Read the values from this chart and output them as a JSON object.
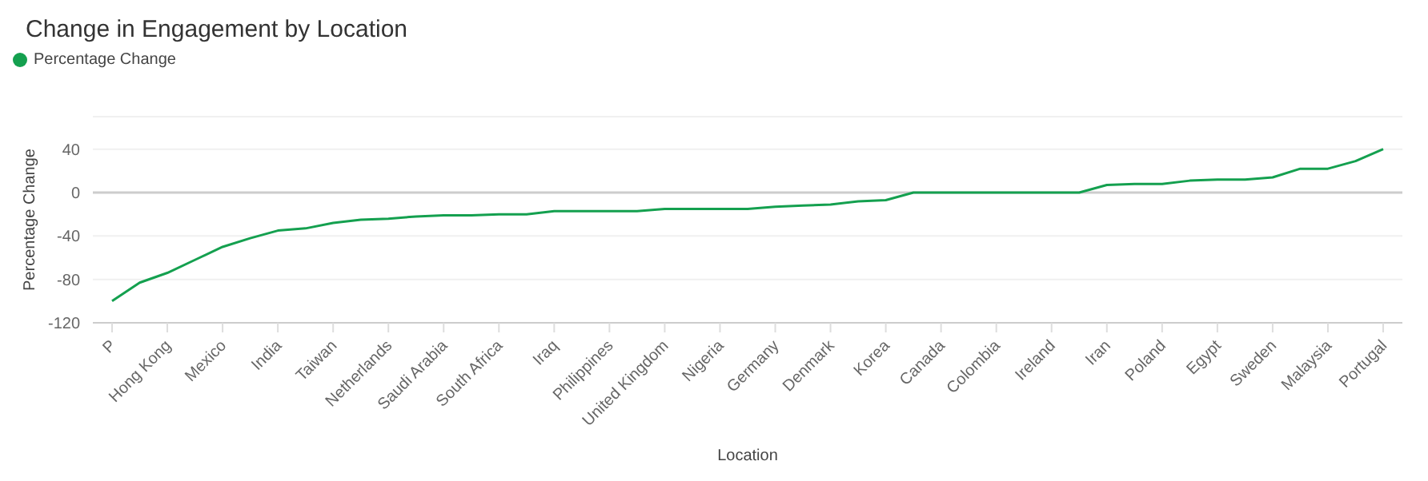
{
  "chart_data": {
    "type": "line",
    "title": "Change in Engagement by Location",
    "xlabel": "Location",
    "ylabel": "Percentage Change",
    "categories": [
      "P",
      null,
      "Hong Kong",
      null,
      "Mexico",
      null,
      "India",
      null,
      "Taiwan",
      null,
      "Netherlands",
      null,
      "Saudi Arabia",
      null,
      "South Africa",
      null,
      "Iraq",
      null,
      "Philippines",
      null,
      "United Kingdom",
      null,
      "Nigeria",
      null,
      "Germany",
      null,
      "Denmark",
      null,
      "Korea",
      null,
      "Canada",
      null,
      "Colombia",
      null,
      "Ireland",
      null,
      "Iran",
      null,
      "Poland",
      null,
      "Egypt",
      null,
      "Sweden",
      null,
      "Malaysia",
      null,
      "Portugal"
    ],
    "series": [
      {
        "name": "Percentage Change",
        "color": "#14a04f",
        "values": [
          -100,
          -83,
          -74,
          -62,
          -50,
          -42,
          -35,
          -33,
          -28,
          -25,
          -24,
          -22,
          -21,
          -21,
          -20,
          -20,
          -17,
          -17,
          -17,
          -17,
          -15,
          -15,
          -15,
          -15,
          -13,
          -12,
          -11,
          -8,
          -7,
          0,
          0,
          0,
          0,
          0,
          0,
          0,
          7,
          8,
          8,
          11,
          12,
          12,
          14,
          22,
          22,
          29,
          40
        ]
      }
    ],
    "ylim": [
      -120,
      70
    ],
    "yticks": [
      -120,
      -80,
      -40,
      0,
      40
    ],
    "ref_lines": [
      {
        "axis": "y",
        "value": 0,
        "color": "#cccccc"
      }
    ],
    "grid": "y",
    "legend": "top left",
    "marker": "none",
    "line_style": "solid"
  }
}
